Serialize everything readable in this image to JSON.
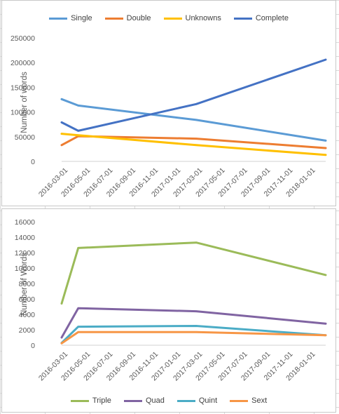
{
  "chart_data": [
    {
      "type": "line",
      "title": "",
      "xlabel": "",
      "ylabel": "Number of words",
      "ylim": [
        0,
        250000
      ],
      "yticks": [
        "0",
        "50000",
        "100000",
        "150000",
        "200000",
        "250000"
      ],
      "x_ticks": [
        "2016-03-01",
        "2016-05-01",
        "2016-07-01",
        "2016-09-01",
        "2016-11-01",
        "2017-01-01",
        "2017-03-01",
        "2017-05-01",
        "2017-07-01",
        "2017-09-01",
        "2017-11-01",
        "2018-01-01"
      ],
      "x_range": [
        "2016-03-01",
        "2018-02-15"
      ],
      "x": [
        "2016-03-01",
        "2016-04-15",
        "2017-03-01",
        "2018-02-15"
      ],
      "legend_position": "top",
      "grid": false,
      "series": [
        {
          "name": "Single",
          "color": "#5b9bd5",
          "values": [
            126000,
            113000,
            84000,
            42000
          ]
        },
        {
          "name": "Double",
          "color": "#ed7d31",
          "values": [
            33000,
            51000,
            46000,
            27000
          ]
        },
        {
          "name": "Unknowns",
          "color": "#ffc000",
          "values": [
            56000,
            53000,
            33000,
            13000
          ]
        },
        {
          "name": "Complete",
          "color": "#4472c4",
          "values": [
            79000,
            62000,
            116000,
            206000
          ]
        }
      ]
    },
    {
      "type": "line",
      "title": "",
      "xlabel": "",
      "ylabel": "Number of Words",
      "ylim": [
        0,
        16000
      ],
      "yticks": [
        "0",
        "2000",
        "4000",
        "6000",
        "8000",
        "10000",
        "12000",
        "14000",
        "16000"
      ],
      "x_ticks": [
        "2016-03-01",
        "2016-05-01",
        "2016-07-01",
        "2016-09-01",
        "2016-11-01",
        "2017-01-01",
        "2017-03-01",
        "2017-05-01",
        "2017-07-01",
        "2017-09-01",
        "2017-11-01",
        "2018-01-01"
      ],
      "x_range": [
        "2016-03-01",
        "2018-02-15"
      ],
      "x": [
        "2016-03-01",
        "2016-04-15",
        "2017-03-01",
        "2018-02-15"
      ],
      "legend_position": "bottom",
      "grid": false,
      "series": [
        {
          "name": "Triple",
          "color": "#9bbb59",
          "values": [
            5400,
            12600,
            13300,
            9100
          ]
        },
        {
          "name": "Quad",
          "color": "#8064a2",
          "values": [
            1000,
            4800,
            4400,
            2800
          ]
        },
        {
          "name": "Quint",
          "color": "#4bacc6",
          "values": [
            300,
            2400,
            2500,
            1300
          ]
        },
        {
          "name": "Sext",
          "color": "#f79646",
          "values": [
            250,
            1700,
            1700,
            1300
          ]
        }
      ]
    }
  ]
}
